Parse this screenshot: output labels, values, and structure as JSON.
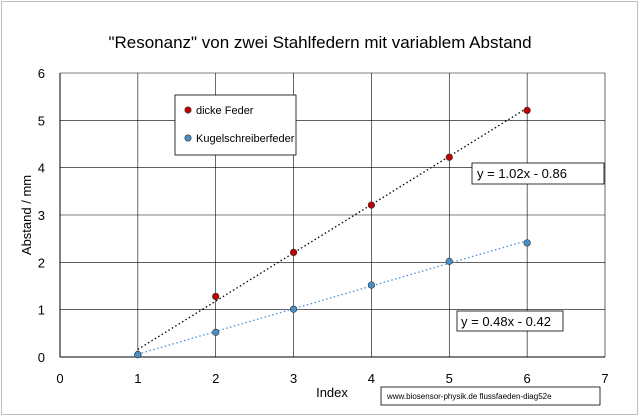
{
  "chart_data": {
    "type": "scatter",
    "title": "\"Resonanz\" von zwei Stahlfedern mit variablem Abstand",
    "xlabel": "Index",
    "ylabel": "Abstand / mm",
    "xlim": [
      0,
      7
    ],
    "ylim": [
      0,
      6
    ],
    "xticks": [
      0,
      1,
      2,
      3,
      4,
      5,
      6,
      7
    ],
    "yticks": [
      0,
      1,
      2,
      3,
      4,
      5,
      6
    ],
    "grid": true,
    "legend_position": "top-left",
    "series": [
      {
        "name": "dicke Feder",
        "color": "#c00000",
        "x": [
          1,
          2,
          3,
          4,
          5,
          6
        ],
        "y": [
          0.05,
          1.28,
          2.21,
          3.21,
          4.22,
          5.21
        ],
        "trendline": {
          "label": "y = 1.02x - 0.86",
          "slope": 1.02,
          "intercept": -0.86,
          "color": "#000000"
        }
      },
      {
        "name": "Kugelschreiberfeder",
        "color": "#4a90c8",
        "x": [
          1,
          2,
          3,
          4,
          5,
          6
        ],
        "y": [
          0.05,
          0.52,
          1.01,
          1.52,
          2.02,
          2.41
        ],
        "trendline": {
          "label": "y = 0.48x - 0.42",
          "slope": 0.48,
          "intercept": -0.42,
          "color": "#4a90d9"
        }
      }
    ]
  },
  "credit": "www.biosensor-physik.de  flussfaeden-diag52e"
}
